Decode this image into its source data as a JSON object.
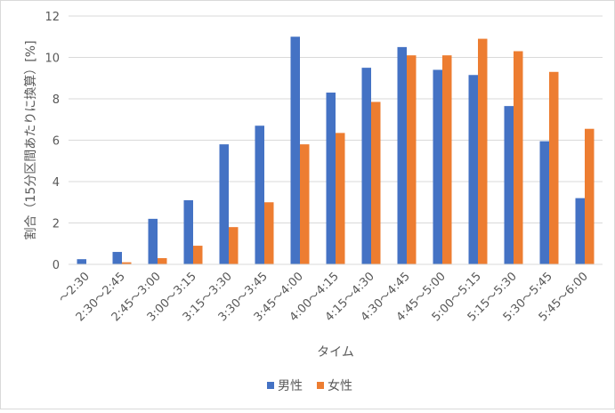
{
  "chart_data": {
    "type": "bar",
    "title": "",
    "xlabel": "タイム",
    "ylabel": "割合（15分区間あたりに換算）[%]",
    "ylim": [
      0,
      12
    ],
    "yticks": [
      0,
      2,
      4,
      6,
      8,
      10,
      12
    ],
    "grid": true,
    "legend_position": "bottom",
    "categories": [
      "〜2:30",
      "2:30〜2:45",
      "2:45〜3:00",
      "3:00〜3:15",
      "3:15〜3:30",
      "3:30〜3:45",
      "3:45〜4:00",
      "4:00〜4:15",
      "4:15〜4:30",
      "4:30〜4:45",
      "4:45〜5:00",
      "5:00〜5:15",
      "5:15〜5:30",
      "5:30〜5:45",
      "5:45〜6:00"
    ],
    "series": [
      {
        "name": "男性",
        "color": "#4472c4",
        "values": [
          0.25,
          0.6,
          2.2,
          3.1,
          5.8,
          6.7,
          11.0,
          8.3,
          9.5,
          10.5,
          9.4,
          9.15,
          7.65,
          5.95,
          3.2
        ]
      },
      {
        "name": "女性",
        "color": "#ed7d31",
        "values": [
          0.0,
          0.1,
          0.3,
          0.9,
          1.8,
          3.0,
          5.8,
          6.35,
          7.85,
          10.1,
          10.1,
          10.9,
          10.3,
          9.3,
          6.55
        ]
      }
    ]
  }
}
